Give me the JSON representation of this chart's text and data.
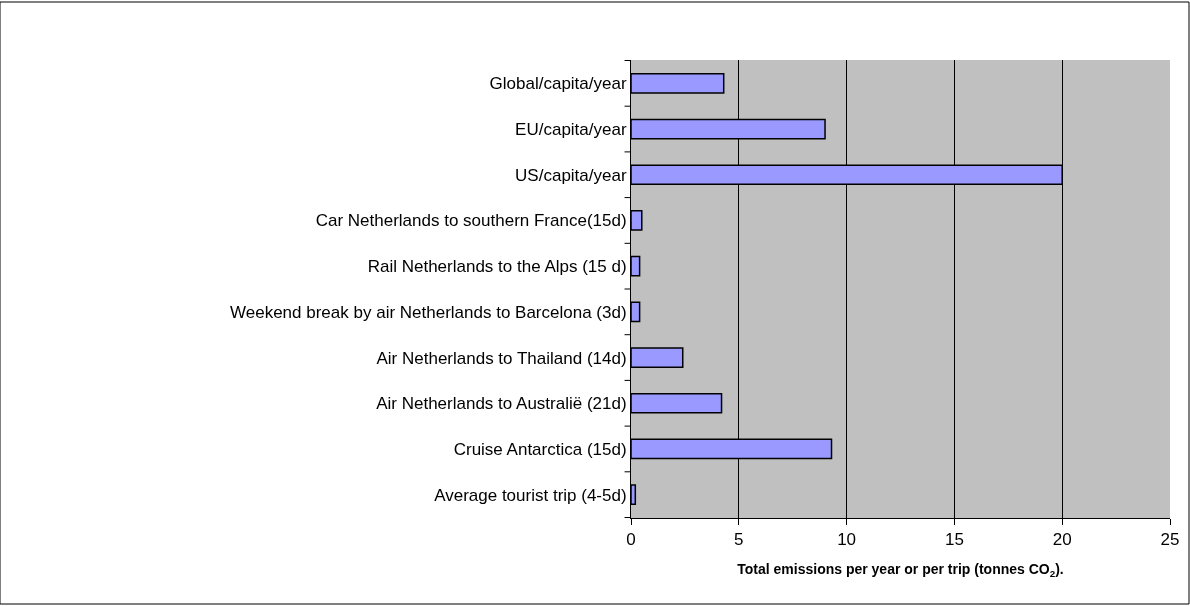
{
  "chart_data": {
    "type": "bar",
    "orientation": "horizontal",
    "categories": [
      "Global/capita/year",
      "EU/capita/year",
      "US/capita/year",
      "Car Netherlands to southern France(15d)",
      "Rail Netherlands to the Alps (15 d)",
      "Weekend break by air Netherlands to Barcelona (3d)",
      "Air Netherlands to Thailand (14d)",
      "Air Netherlands to Australië (21d)",
      "Cruise Antarctica (15d)",
      "Average tourist trip (4-5d)"
    ],
    "values": [
      4.3,
      9.0,
      20.0,
      0.5,
      0.4,
      0.4,
      2.4,
      4.2,
      9.3,
      0.2
    ],
    "color": "#9999ff",
    "xlabel": "Total emissions per year or per trip (tonnes CO$_{2}$).",
    "xlim": [
      0,
      25
    ],
    "xticks": [
      0,
      5,
      10,
      15,
      20,
      25
    ],
    "grid": "x"
  }
}
